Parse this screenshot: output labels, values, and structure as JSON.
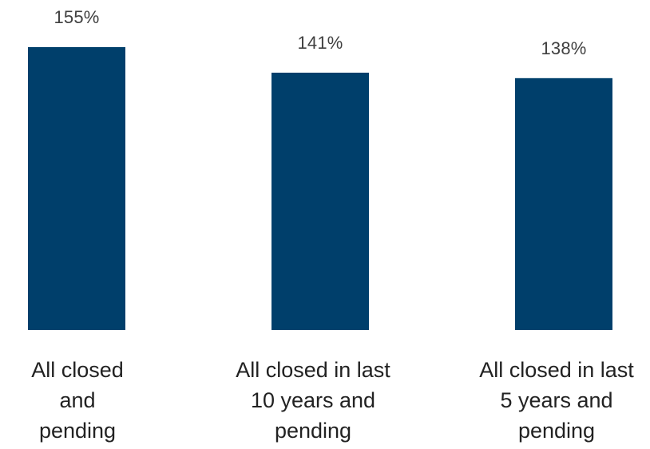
{
  "chart_data": {
    "type": "bar",
    "categories": [
      "All closed and pending",
      "All closed in last 10 years and pending",
      "All closed in last 5 years and pending"
    ],
    "category_lines": [
      [
        "All closed",
        "and",
        "pending"
      ],
      [
        "All closed in last",
        "10 years and",
        "pending"
      ],
      [
        "All closed in last",
        "5 years and",
        "pending"
      ]
    ],
    "values": [
      155,
      141,
      138
    ],
    "value_labels": [
      "155%",
      "141%",
      "138%"
    ],
    "unit": "%",
    "title": "",
    "xlabel": "",
    "ylabel": "",
    "ylim": [
      0,
      155
    ],
    "grid": false,
    "legend": "none",
    "bar_color": "#003F6B"
  }
}
